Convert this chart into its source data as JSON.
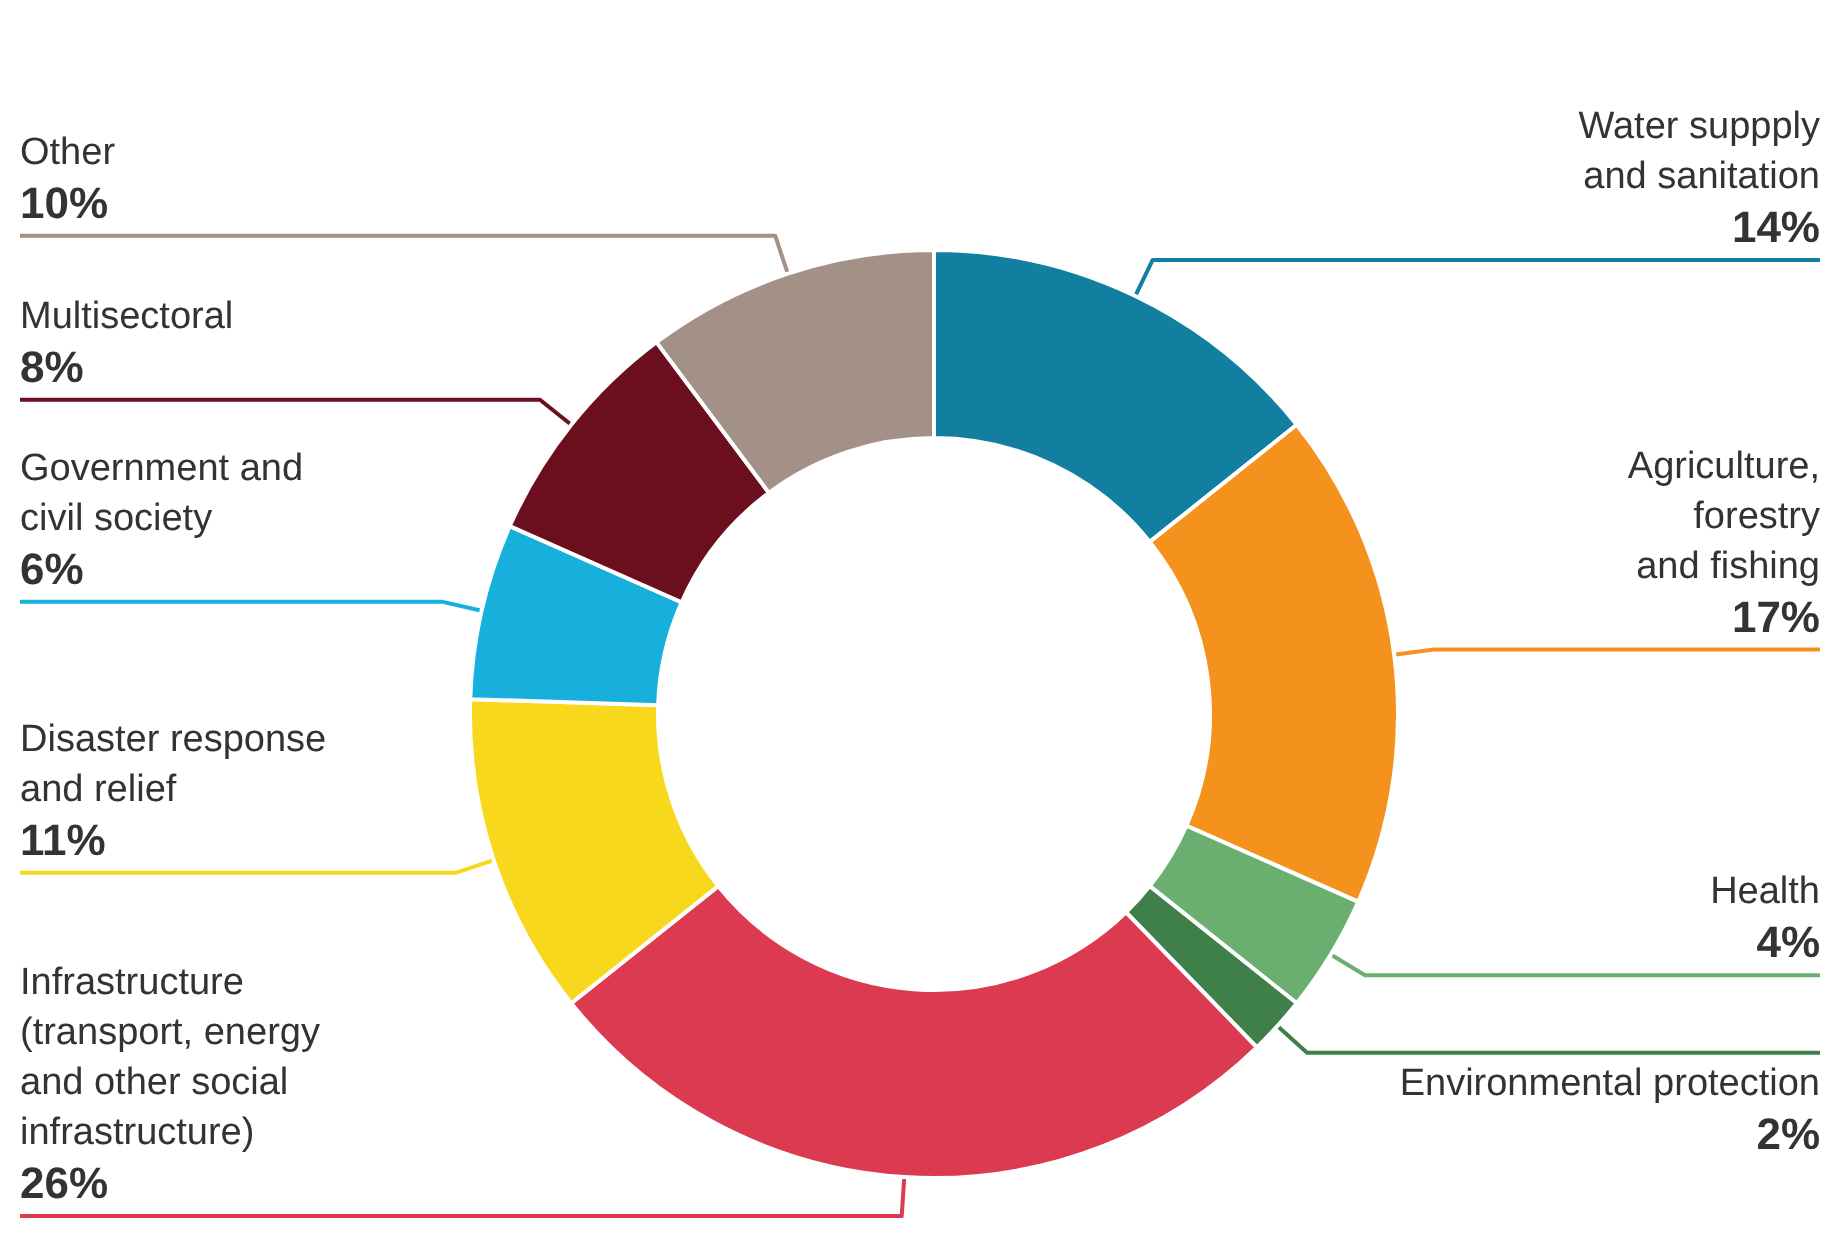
{
  "chart_data": {
    "type": "donut",
    "categories": [
      "Water suppply\nand sanitation",
      "Agriculture,\nforestry\nand fishing",
      "Health",
      "Environmental protection",
      "Infrastructure\n(transport, energy\nand other social\ninfrastructure)",
      "Disaster response\nand relief",
      "Government and\ncivil society",
      "Multisectoral",
      "Other"
    ],
    "values": [
      14,
      17,
      4,
      2,
      26,
      11,
      6,
      8,
      10
    ],
    "value_labels": [
      "14%",
      "17%",
      "4%",
      "2%",
      "26%",
      "11%",
      "6%",
      "8%",
      "10%"
    ],
    "colors": [
      "#127fa0",
      "#f5921e",
      "#6aaf6f",
      "#3f7f4a",
      "#dc3a50",
      "#f8d81c",
      "#17b0dc",
      "#6b0f1f",
      "#a39086"
    ]
  }
}
